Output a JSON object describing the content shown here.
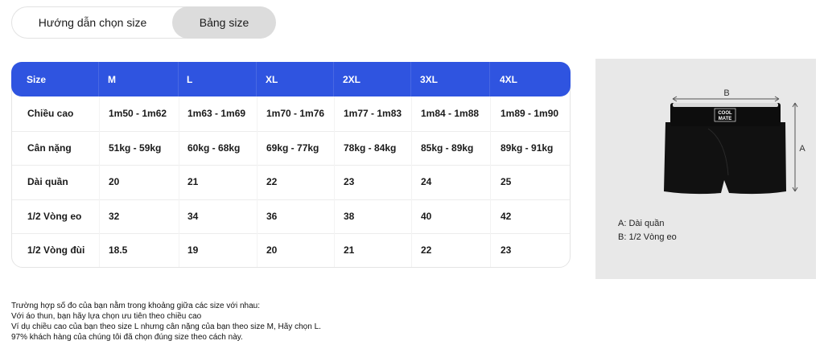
{
  "tabs": [
    "Hướng dẫn chọn size",
    "Bảng size"
  ],
  "table": {
    "header": [
      "Size",
      "M",
      "L",
      "XL",
      "2XL",
      "3XL",
      "4XL"
    ],
    "rows": [
      [
        "Chiều cao",
        "1m50 - 1m62",
        "1m63 - 1m69",
        "1m70 - 1m76",
        "1m77 - 1m83",
        "1m84 - 1m88",
        "1m89 - 1m90"
      ],
      [
        "Cân nặng",
        "51kg - 59kg",
        "60kg - 68kg",
        "69kg - 77kg",
        "78kg - 84kg",
        "85kg - 89kg",
        "89kg - 91kg"
      ],
      [
        "Dài quần",
        20,
        21,
        22,
        23,
        24,
        25
      ],
      [
        "1/2 Vòng eo",
        32,
        34,
        36,
        38,
        40,
        42
      ],
      [
        "1/2 Vòng đùi",
        18.5,
        19,
        20,
        21,
        22,
        23
      ]
    ]
  },
  "image": {
    "logo": [
      "COOL",
      "MATE"
    ],
    "width_label": "B",
    "height_label": "A",
    "legend": [
      "A: Dài quần",
      "B: 1/2 Vòng eo"
    ]
  },
  "notes": [
    "Trường hợp số đo của bạn nằm trong khoảng giữa các size với nhau:",
    "Với áo thun, bạn hãy lựa chọn ưu tiên theo chiều cao",
    "Ví dụ chiều cao của bạn theo size L nhưng cân nặng của bạn theo size M, Hãy chọn L.",
    "97% khách hàng của chúng tôi đã chọn đúng size theo cách này."
  ]
}
